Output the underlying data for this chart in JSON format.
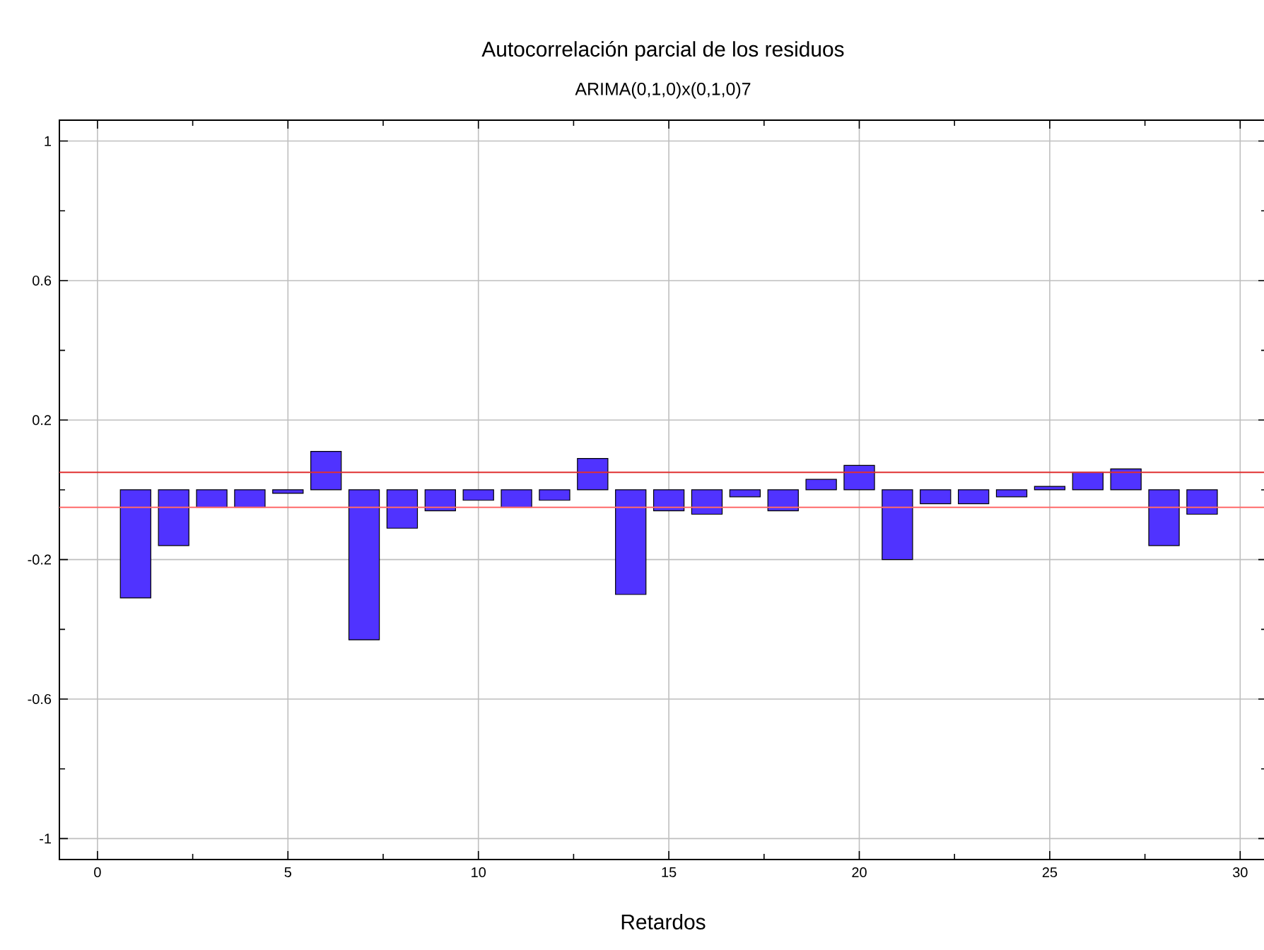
{
  "chart_data": {
    "type": "bar",
    "title": "Autocorrelación parcial de los residuos",
    "subtitle": "ARIMA(0,1,0)x(0,1,0)7",
    "xlabel": "Retardos",
    "x": [
      1,
      2,
      3,
      4,
      5,
      6,
      7,
      8,
      9,
      10,
      11,
      12,
      13,
      14,
      15,
      16,
      17,
      18,
      19,
      20,
      21,
      22,
      23,
      24,
      25,
      26,
      27,
      28,
      29
    ],
    "values": [
      -0.31,
      -0.16,
      -0.05,
      -0.05,
      -0.01,
      0.11,
      -0.43,
      -0.11,
      -0.06,
      -0.03,
      -0.05,
      -0.03,
      0.09,
      -0.3,
      -0.06,
      -0.07,
      -0.02,
      -0.06,
      0.03,
      0.07,
      -0.2,
      -0.04,
      -0.04,
      -0.02,
      0.01,
      0.05,
      0.06,
      -0.16,
      -0.07
    ],
    "color": "#5033ff",
    "xlim": [
      -1,
      30.7
    ],
    "ylim": [
      -1.06,
      1.06
    ],
    "xticks": [
      0,
      5,
      10,
      15,
      20,
      25,
      30
    ],
    "yticks": [
      -1,
      -0.6,
      -0.2,
      0.2,
      0.6,
      1
    ],
    "grid": true,
    "ref_lines": [
      {
        "axis": "y",
        "value": 0.05,
        "color": "#e03030"
      },
      {
        "axis": "y",
        "value": -0.05,
        "color": "#ff6a6a"
      }
    ]
  }
}
